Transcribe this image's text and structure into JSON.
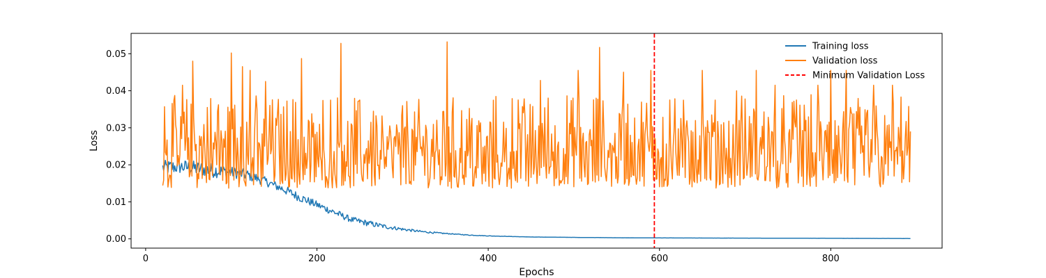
{
  "chart_data": {
    "type": "line",
    "title": "",
    "xlabel": "Epochs",
    "ylabel": "Loss",
    "xlim": [
      -17,
      930
    ],
    "ylim": [
      -0.0025,
      0.0555
    ],
    "xticks": [
      0,
      200,
      400,
      600,
      800
    ],
    "xtick_labels": [
      "0",
      "200",
      "400",
      "600",
      "800"
    ],
    "yticks": [
      0.0,
      0.01,
      0.02,
      0.03,
      0.04,
      0.05
    ],
    "ytick_labels": [
      "0.00",
      "0.01",
      "0.02",
      "0.03",
      "0.04",
      "0.05"
    ],
    "grid": false,
    "legend_position": "upper-right",
    "x_range": [
      20,
      893
    ],
    "series": [
      {
        "name": "Training loss",
        "color": "#1f77b4",
        "points": [
          [
            20,
            0.0192
          ],
          [
            40,
            0.0195
          ],
          [
            60,
            0.019
          ],
          [
            80,
            0.0185
          ],
          [
            100,
            0.018
          ],
          [
            120,
            0.0172
          ],
          [
            140,
            0.0155
          ],
          [
            160,
            0.0135
          ],
          [
            180,
            0.0112
          ],
          [
            200,
            0.0092
          ],
          [
            220,
            0.0072
          ],
          [
            240,
            0.0052
          ],
          [
            260,
            0.0042
          ],
          [
            280,
            0.0033
          ],
          [
            300,
            0.0026
          ],
          [
            320,
            0.002
          ],
          [
            340,
            0.0016
          ],
          [
            360,
            0.0013
          ],
          [
            380,
            0.001
          ],
          [
            400,
            0.0008
          ],
          [
            450,
            0.0005
          ],
          [
            500,
            0.0004
          ],
          [
            550,
            0.0003
          ],
          [
            600,
            0.00025
          ],
          [
            700,
            0.0002
          ],
          [
            800,
            0.00015
          ],
          [
            893,
            0.0001
          ]
        ],
        "noise": [
          0.002,
          0.002,
          0.002,
          0.002,
          0.0015,
          0.0015,
          0.0012,
          0.0012,
          0.0012,
          0.001,
          0.001,
          0.0008,
          0.0008,
          0.0006,
          0.0004,
          0.0003,
          0.0002,
          0.0001,
          0.0001,
          5e-05,
          2e-05,
          1e-05,
          1e-05,
          1e-05,
          1e-05,
          1e-05,
          1e-05
        ]
      },
      {
        "name": "Validation loss",
        "color": "#ff7f0e",
        "min": 0.0137,
        "max": 0.0533,
        "typical_range": [
          0.015,
          0.036
        ],
        "peaks": [
          [
            22,
            0.0357
          ],
          [
            43,
            0.0415
          ],
          [
            55,
            0.048
          ],
          [
            72,
            0.0355
          ],
          [
            85,
            0.0362
          ],
          [
            100,
            0.0502
          ],
          [
            113,
            0.0465
          ],
          [
            122,
            0.0455
          ],
          [
            140,
            0.0425
          ],
          [
            182,
            0.0487
          ],
          [
            228,
            0.0528
          ],
          [
            250,
            0.0375
          ],
          [
            352,
            0.0532
          ],
          [
            435,
            0.0375
          ],
          [
            461,
            0.0428
          ],
          [
            505,
            0.0455
          ],
          [
            530,
            0.0517
          ],
          [
            558,
            0.045
          ],
          [
            590,
            0.0455
          ],
          [
            612,
            0.0375
          ],
          [
            650,
            0.0455
          ],
          [
            690,
            0.04
          ],
          [
            713,
            0.0455
          ],
          [
            735,
            0.0415
          ],
          [
            760,
            0.0375
          ],
          [
            785,
            0.0415
          ],
          [
            800,
            0.0455
          ],
          [
            818,
            0.0455
          ],
          [
            850,
            0.0415
          ],
          [
            872,
            0.0415
          ]
        ]
      }
    ],
    "vline": {
      "name": "Minimum Validation Loss",
      "x": 594,
      "color": "#ff0000",
      "style": "dashed"
    }
  }
}
